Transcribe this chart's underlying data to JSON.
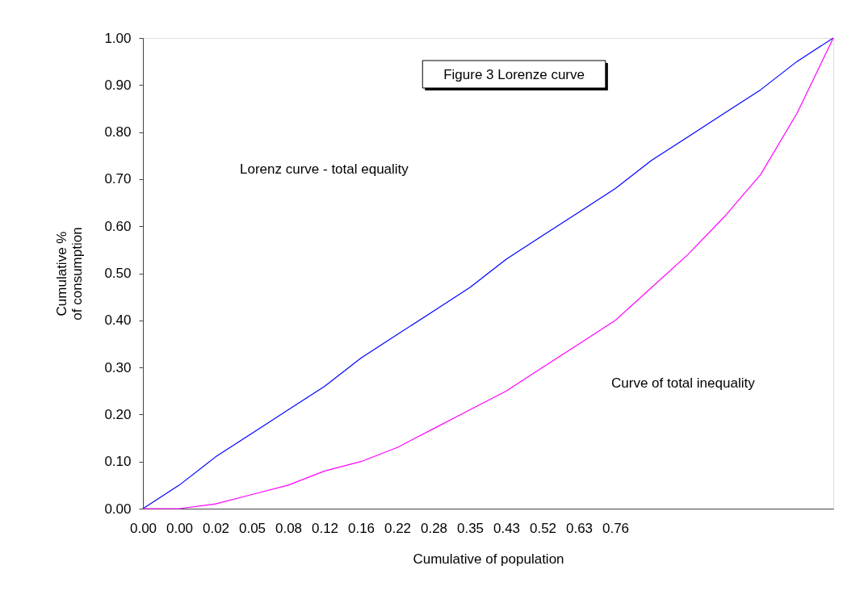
{
  "chart_data": {
    "type": "line",
    "title": "Figure 3 Lorenze curve",
    "xlabel": "Cumulative of population",
    "ylabel": "Cumulative % \nof consumption",
    "categories": [
      "0.00",
      "0.00",
      "0.02",
      "0.05",
      "0.08",
      "0.12",
      "0.16",
      "0.22",
      "0.28",
      "0.35",
      "0.43",
      "0.52",
      "0.63",
      "0.76",
      null,
      null,
      null,
      null,
      null,
      null
    ],
    "series": [
      {
        "color": "#0000ff",
        "values": [
          0,
          0.05,
          0.11,
          0.16,
          0.21,
          0.26,
          0.32,
          0.37,
          0.42,
          0.47,
          0.53,
          0.58,
          0.63,
          0.68,
          0.74,
          0.79,
          0.84,
          0.89,
          0.95,
          1.0
        ]
      },
      {
        "color": "#ff00ff",
        "values": [
          0,
          0.0,
          0.01,
          0.03,
          0.05,
          0.08,
          0.1,
          0.13,
          0.17,
          0.21,
          0.25,
          0.3,
          0.35,
          0.4,
          0.47,
          0.54,
          0.62,
          0.71,
          0.84,
          1.0
        ]
      }
    ],
    "ylim": [
      0,
      1
    ],
    "yticks": [
      {
        "value": 0,
        "label": "0.00"
      },
      {
        "value": 0.1,
        "label": "0.10"
      },
      {
        "value": 0.2,
        "label": "0.20"
      },
      {
        "value": 0.3,
        "label": "0.30"
      },
      {
        "value": 0.4,
        "label": "0.40"
      },
      {
        "value": 0.5,
        "label": "0.50"
      },
      {
        "value": 0.6,
        "label": "0.60"
      },
      {
        "value": 0.7,
        "label": "0.70"
      },
      {
        "value": 0.8,
        "label": "0.80"
      },
      {
        "value": 0.9,
        "label": "0.90"
      },
      {
        "value": 1,
        "label": "1.00"
      }
    ],
    "annotations": [
      "Lorenz curve -  total equality",
      "Curve of total inequality"
    ],
    "grid": false,
    "marker": "none",
    "line_style": "solid"
  }
}
